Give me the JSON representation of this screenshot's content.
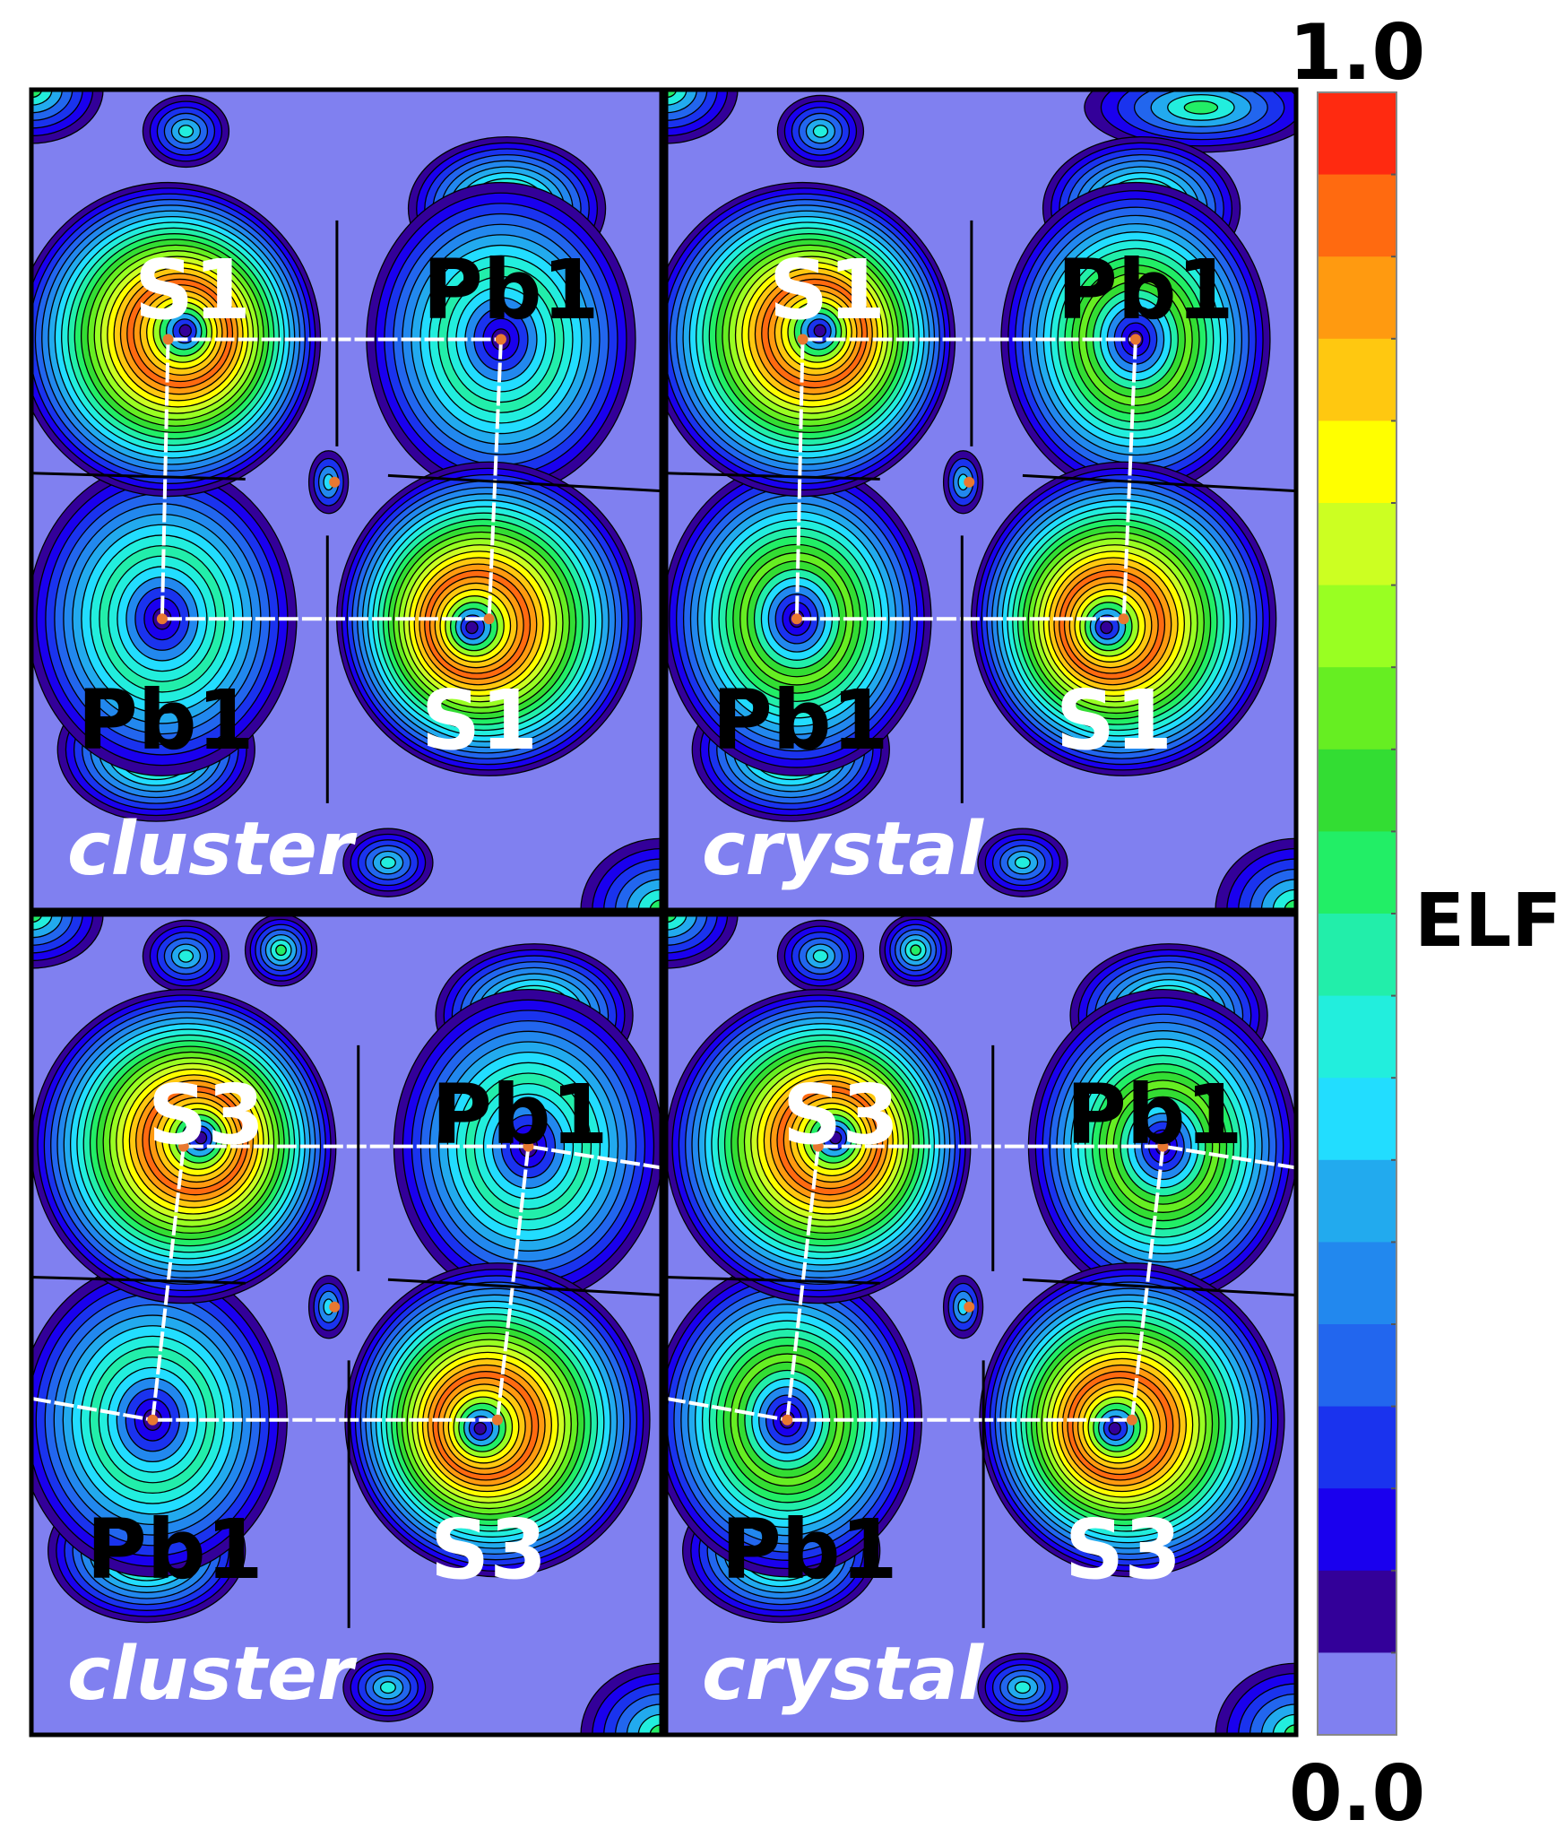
{
  "panels": [
    {
      "label": "cluster",
      "atoms": [
        "S1",
        "Pb1",
        "Pb1",
        "S1"
      ],
      "pb_core": "ring"
    },
    {
      "label": "crystal",
      "atoms": [
        "S1",
        "Pb1",
        "Pb1",
        "S1"
      ],
      "pb_core": "ringed-dark"
    },
    {
      "label": "cluster",
      "atoms": [
        "S3",
        "Pb1",
        "Pb1",
        "S3"
      ],
      "pb_core": "ring"
    },
    {
      "label": "crystal",
      "atoms": [
        "S3",
        "Pb1",
        "Pb1",
        "S3"
      ],
      "pb_core": "ringed-dark"
    }
  ],
  "colorbar": {
    "name": "ELF",
    "max_label": "1.0",
    "min_label": "0.0",
    "colors_top_to_bottom": [
      "#ff2a10",
      "#ff6a10",
      "#ff9a10",
      "#ffc810",
      "#ffff00",
      "#ccff22",
      "#99ff22",
      "#66ee22",
      "#33dd33",
      "#22ee66",
      "#22eeaa",
      "#22eedd",
      "#22ddff",
      "#22aaee",
      "#2288ee",
      "#2266ee",
      "#1a33ee",
      "#1a00ee",
      "#330099",
      "#8080f0"
    ]
  },
  "colors": {
    "background_fill": "#8080f0",
    "bond_path": "#ffffff",
    "basin_boundary": "#000000",
    "critical_point": "#e87830"
  }
}
